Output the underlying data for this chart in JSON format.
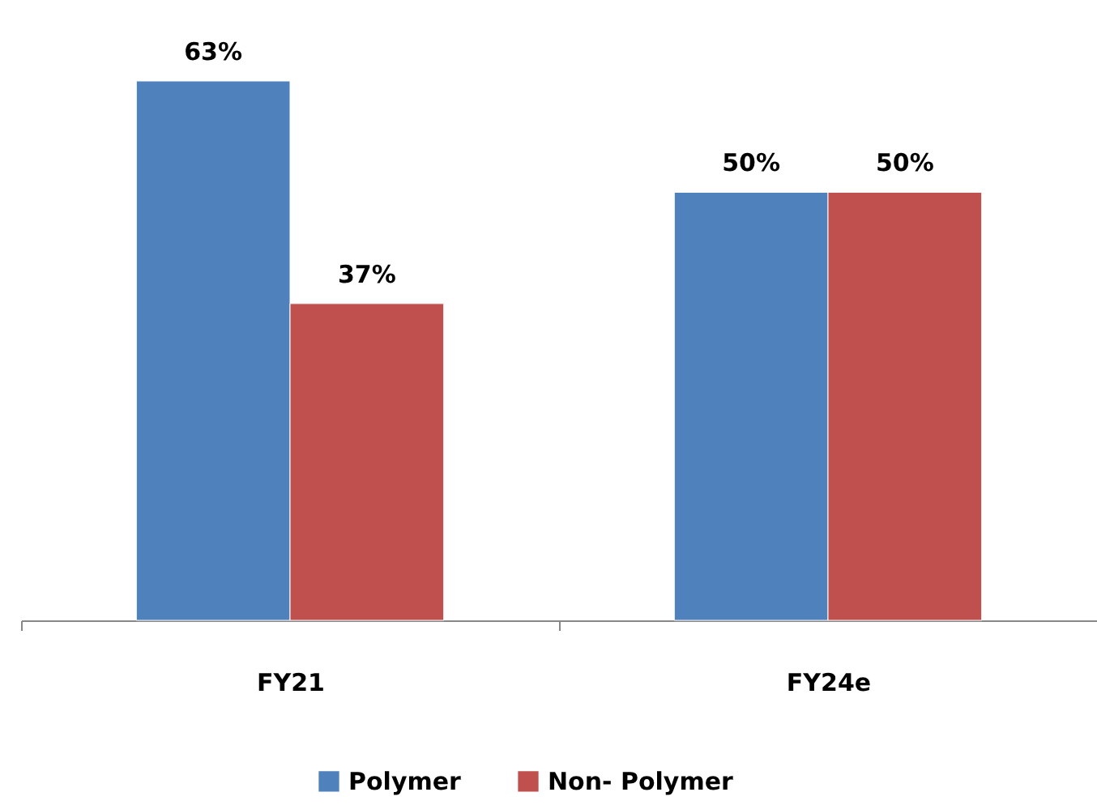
{
  "chart_data": {
    "type": "bar",
    "categories": [
      "FY21",
      "FY24e"
    ],
    "series": [
      {
        "name": "Polymer",
        "color": "#4f81bd",
        "values": [
          63,
          50
        ],
        "value_labels": [
          "63%",
          "50%"
        ]
      },
      {
        "name": "Non- Polymer",
        "color": "#c0504d",
        "values": [
          37,
          50
        ],
        "value_labels": [
          "37%",
          "50%"
        ]
      }
    ],
    "legend": "bottom",
    "grid": false
  }
}
